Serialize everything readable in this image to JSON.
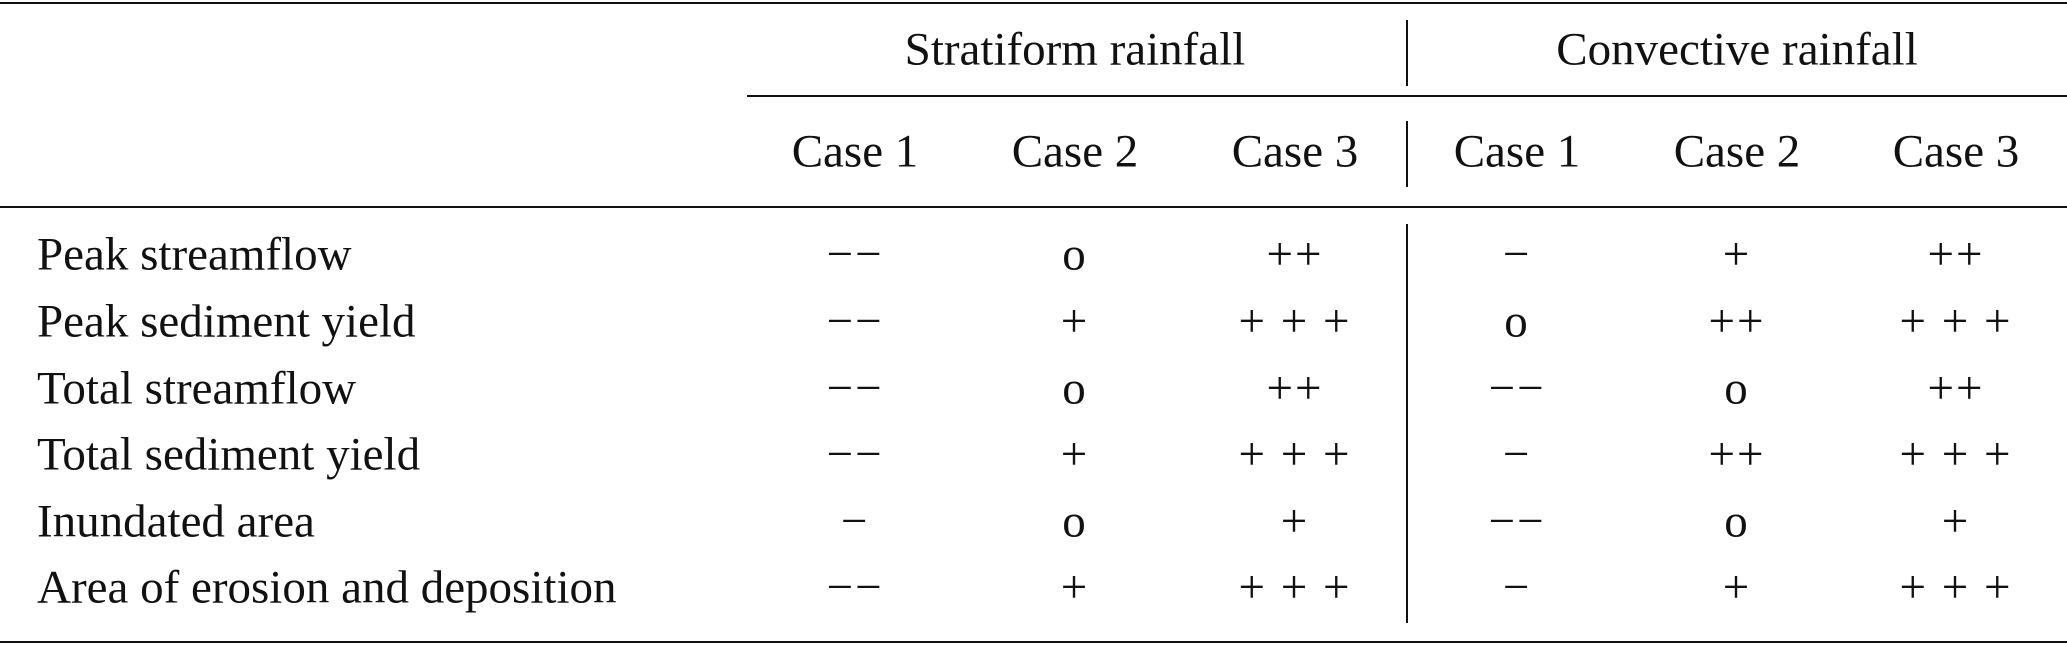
{
  "table": {
    "groups": [
      "Stratiform rainfall",
      "Convective rainfall"
    ],
    "columns": [
      "Case 1",
      "Case 2",
      "Case 3",
      "Case 1",
      "Case 2",
      "Case 3"
    ],
    "rows": [
      {
        "label": "Peak streamflow",
        "values": [
          "−−",
          "o",
          "++",
          "−",
          "+",
          "++"
        ]
      },
      {
        "label": "Peak sediment yield",
        "values": [
          "−−",
          "+",
          "+ + +",
          "o",
          "++",
          "+ + +"
        ]
      },
      {
        "label": "Total streamflow",
        "values": [
          "−−",
          "o",
          "++",
          "−−",
          "o",
          "++"
        ]
      },
      {
        "label": "Total sediment yield",
        "values": [
          "−−",
          "+",
          "+ + +",
          "−",
          "++",
          "+ + +"
        ]
      },
      {
        "label": "Inundated area",
        "values": [
          "−",
          "o",
          "+",
          "−−",
          "o",
          "+"
        ]
      },
      {
        "label": "Area of erosion and deposition",
        "values": [
          "−−",
          "+",
          "+ + +",
          "−",
          "+",
          "+ + +"
        ]
      }
    ]
  }
}
